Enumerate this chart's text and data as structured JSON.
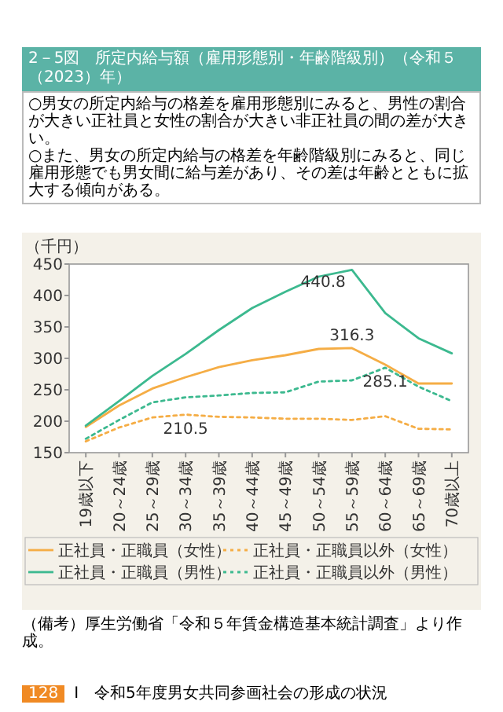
{
  "chart_data": {
    "type": "line",
    "title": "2－5図　所定内給与額（雇用形態別・年齢階級別）（令和５（2023）年）",
    "subtitle": "○男女の所定内給与の格差を雇用形態別にみると、男性の割合が大きい正社員と女性の割合が大きい非正社員の間の差が大きい。",
    "annotations": [
      "○また、男女の所定内給与の格差を年齢階級別にみると、同じ雇用形態でも男女間に給与差があり、その差は年齢とともに拡大する傾向がある。",
      "（備考）厚生労働省「令和５年賃金構造基本統計調査」より作成。",
      "128",
      "Ⅰ　令和5年度男女共同参画社会の形成の状況"
    ],
    "ylabel": "（千円）",
    "categories": [
      "19歳以下",
      "20～24歳",
      "25～29歳",
      "30～34歳",
      "35～39歳",
      "40～44歳",
      "45～49歳",
      "50～54歳",
      "55～59歳",
      "60～64歳",
      "65～69歳",
      "70歳以上"
    ],
    "series": [
      {
        "name": "正社員・正職員（女性）",
        "color": "#f5ad45",
        "line_style": "solid",
        "values": [
          191,
          225,
          252,
          270,
          286,
          297,
          305,
          315,
          316.3,
          290,
          260,
          260
        ],
        "value_labels": [
          null,
          null,
          null,
          null,
          null,
          null,
          null,
          null,
          "316.3",
          null,
          null,
          null
        ]
      },
      {
        "name": "正社員・正職員（男性）",
        "color": "#3cb98f",
        "line_style": "solid",
        "values": [
          193,
          232,
          272,
          307,
          345,
          380,
          406,
          430,
          440.8,
          372,
          332,
          308
        ],
        "value_labels": [
          null,
          null,
          null,
          null,
          null,
          null,
          null,
          null,
          "440.8",
          null,
          null,
          null
        ]
      },
      {
        "name": "正社員・正職員以外（女性）",
        "color": "#f5ad45",
        "line_style": "dotted",
        "values": [
          168,
          190,
          206,
          210.5,
          207,
          206,
          204,
          204,
          202,
          208,
          188,
          187
        ],
        "value_labels": [
          null,
          null,
          null,
          "210.5",
          null,
          null,
          null,
          null,
          null,
          null,
          null,
          null
        ]
      },
      {
        "name": "正社員・正職員以外（男性）",
        "color": "#3cb98f",
        "line_style": "dotted",
        "values": [
          172,
          202,
          230,
          238,
          241,
          245,
          246,
          263,
          265,
          285.1,
          255,
          232
        ],
        "value_labels": [
          null,
          null,
          null,
          null,
          null,
          null,
          null,
          null,
          null,
          "285.1",
          null,
          null
        ]
      }
    ],
    "ylim": [
      150,
      450
    ],
    "yticks": [
      150,
      200,
      250,
      300,
      350,
      400,
      450
    ],
    "grid": false,
    "legend": "bottom"
  }
}
